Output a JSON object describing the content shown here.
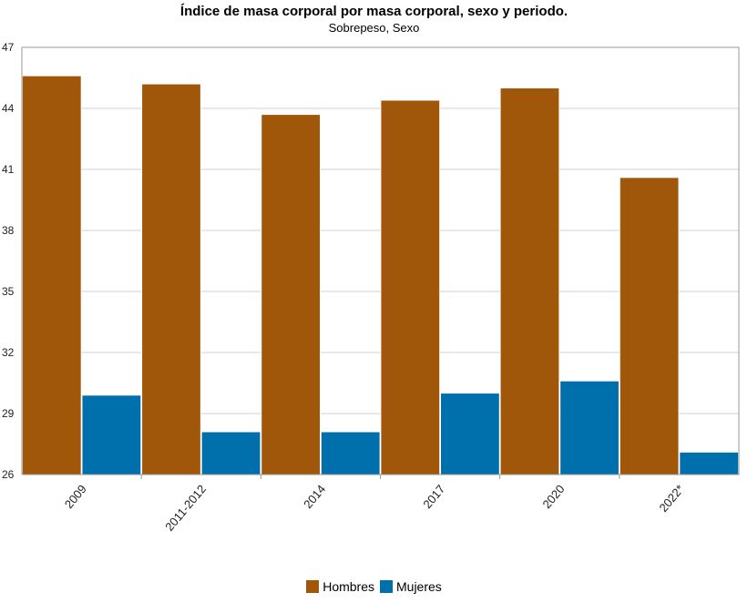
{
  "chart_data": {
    "type": "bar",
    "title": "Índice de masa corporal por masa corporal, sexo y periodo.",
    "subtitle": "Sobrepeso, Sexo",
    "categories": [
      "2009",
      "2011-2012",
      "2014",
      "2017",
      "2020",
      "2022*"
    ],
    "series": [
      {
        "name": "Hombres",
        "color": "#A0570A",
        "values": [
          45.6,
          45.2,
          43.7,
          44.4,
          45.0,
          40.6
        ]
      },
      {
        "name": "Mujeres",
        "color": "#0070AD",
        "values": [
          29.9,
          28.1,
          28.1,
          30.0,
          30.6,
          27.1
        ]
      }
    ],
    "yticks": [
      26,
      29,
      32,
      35,
      38,
      41,
      44,
      47
    ],
    "ylim": [
      26,
      47
    ],
    "grid": true,
    "legend_position": "bottom-center"
  }
}
